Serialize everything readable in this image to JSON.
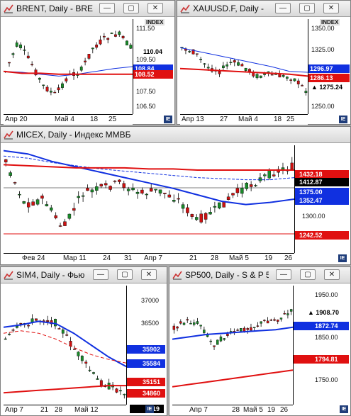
{
  "windows": {
    "brent": {
      "title": "BRENT, Daily - BRE",
      "axis_header": "INDEX",
      "ticks": [
        "111.50",
        "110.04",
        "109.50",
        "108.52",
        "107.50",
        "106.50"
      ],
      "price_labels": [
        {
          "text": "110.04",
          "color": "#000000",
          "style": "marker"
        },
        {
          "text": "108.84",
          "color": "#1030e0",
          "style": "box"
        },
        {
          "text": "108.52",
          "color": "#e01010",
          "style": "box"
        }
      ],
      "xlabels": [
        "Апр 20",
        "Май 4",
        "18",
        "25"
      ]
    },
    "xau": {
      "title": "XAUUSD.F, Daily - ",
      "axis_header": "INDEX",
      "ticks": [
        "1350.00",
        "1325.00",
        "1296.97",
        "1286.13",
        "1275.24",
        "1250.00"
      ],
      "price_labels": [
        {
          "text": "1296.97",
          "color": "#1030e0",
          "style": "box"
        },
        {
          "text": "1286.13",
          "color": "#e01010",
          "style": "box"
        },
        {
          "text": "1275.24",
          "color": "#000000",
          "style": "marker"
        }
      ],
      "xlabels": [
        "Апр 13",
        "27",
        "Май 4",
        "18",
        "25"
      ]
    },
    "micex": {
      "title": "MICEX, Daily - Индекс ММВБ",
      "ticks": [
        "1432.18",
        "1412.87",
        "1375.00",
        "1352.47",
        "1300.00",
        "1242.52"
      ],
      "price_labels": [
        {
          "text": "1432.18",
          "color": "#e01010",
          "style": "box"
        },
        {
          "text": "1412.87",
          "color": "#000000",
          "style": "box"
        },
        {
          "text": "1375.00",
          "color": "#1030e0",
          "style": "box"
        },
        {
          "text": "1352.47",
          "color": "#1030e0",
          "style": "box"
        },
        {
          "text": "1242.52",
          "color": "#e01010",
          "style": "box"
        }
      ],
      "xlabels": [
        "Фев 24",
        "Мар 11",
        "24",
        "31",
        "Апр 7",
        "21",
        "28",
        "Май 5",
        "19",
        "26"
      ]
    },
    "sim4": {
      "title": "SIM4, Daily - Фью",
      "ticks": [
        "37000",
        "36500",
        "35902",
        "35584",
        "35151",
        "34860"
      ],
      "price_labels": [
        {
          "text": "35902",
          "color": "#1030e0",
          "style": "box"
        },
        {
          "text": "35584",
          "color": "#1030e0",
          "style": "box"
        },
        {
          "text": "35151",
          "color": "#e01010",
          "style": "box"
        },
        {
          "text": "34860",
          "color": "#e01010",
          "style": "box"
        },
        {
          "text": "19",
          "color": "#000000",
          "style": "box"
        }
      ],
      "xlabels": [
        "Апр 7",
        "21",
        "28",
        "Май 12"
      ]
    },
    "sp500": {
      "title": "SP500, Daily - S & P 5",
      "ticks": [
        "1950.00",
        "1908.70",
        "1872.74",
        "1850.00",
        "1794.81",
        "1750.00"
      ],
      "price_labels": [
        {
          "text": "1908.70",
          "color": "#000000",
          "style": "marker"
        },
        {
          "text": "1872.74",
          "color": "#1030e0",
          "style": "box"
        },
        {
          "text": "1794.81",
          "color": "#e01010",
          "style": "box"
        }
      ],
      "xlabels": [
        "Апр 7",
        "28",
        "Май 5",
        "19",
        "26"
      ]
    }
  },
  "colors": {
    "up": "#1a8a2a",
    "down": "#cc1111",
    "ma_fast": "#1030e0",
    "ma_slow": "#e01010"
  },
  "icons": [
    "chart-icon",
    "minimize-icon",
    "restore-icon",
    "close-icon"
  ]
}
